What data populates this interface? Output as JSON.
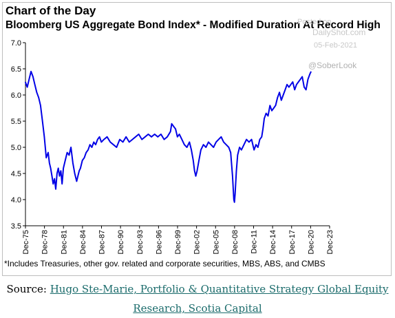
{
  "header": {
    "title": "Chart of the Day",
    "subtitle": "Bloomberg US Aggregate Bond Index* - Modified Duration At Record High"
  },
  "watermark": {
    "posted_on": "Posted on",
    "site": "DailyShot.com",
    "date": "05-Feb-2021",
    "handle": "@SoberLook"
  },
  "footnote": "*Includes Treasuries, other gov. related and corporate securities, MBS, ABS, and CMBS",
  "source": {
    "prefix": "Source: ",
    "link_line1": "Hugo Ste-Marie, Portfolio & Quantitative Strategy Global Equity",
    "link_line2": "Research, Scotia Capital"
  },
  "colors": {
    "line": "#0000e6",
    "axis": "#000000",
    "link": "#1a6b6b"
  },
  "chart_data": {
    "type": "line",
    "title": "Bloomberg US Aggregate Bond Index* - Modified Duration At Record High",
    "ylim": [
      3.5,
      7.0
    ],
    "yticks": [
      "3.5",
      "4.0",
      "4.5",
      "5.0",
      "5.5",
      "6.0",
      "6.5",
      "7.0"
    ],
    "xlim": [
      1975.92,
      2023.92
    ],
    "xticks": [
      "Dec-75",
      "Dec-78",
      "Dec-81",
      "Dec-84",
      "Dec-87",
      "Dec-90",
      "Dec-93",
      "Dec-96",
      "Dec-99",
      "Dec-02",
      "Dec-05",
      "Dec-08",
      "Dec-11",
      "Dec-14",
      "Dec-17",
      "Dec-20",
      "Dec-23"
    ],
    "grid": false,
    "legend": "none",
    "series": [
      {
        "x": [
          1975.9,
          1976.2,
          1976.5,
          1976.8,
          1977.1,
          1977.4,
          1977.7,
          1978.0,
          1978.3,
          1978.6,
          1978.9,
          1979.2,
          1979.5,
          1979.7,
          1979.9,
          1980.1,
          1980.3,
          1980.5,
          1980.7,
          1980.9,
          1981.1,
          1981.3,
          1981.5,
          1981.7,
          1981.9,
          1982.2,
          1982.5,
          1982.8,
          1983.1,
          1983.4,
          1983.7,
          1984.0,
          1984.2,
          1984.4,
          1984.6,
          1984.9,
          1985.2,
          1985.5,
          1985.8,
          1986.1,
          1986.4,
          1986.7,
          1987.0,
          1987.3,
          1987.6,
          1987.9,
          1988.3,
          1988.8,
          1989.3,
          1989.8,
          1990.3,
          1990.8,
          1991.3,
          1991.8,
          1992.3,
          1992.8,
          1993.3,
          1993.8,
          1994.3,
          1994.8,
          1995.3,
          1995.8,
          1996.3,
          1996.8,
          1997.3,
          1997.8,
          1998.3,
          1998.8,
          1999.0,
          1999.3,
          1999.6,
          1999.9,
          2000.2,
          2000.6,
          2001.0,
          2001.4,
          2001.8,
          2002.1,
          2002.4,
          2002.6,
          2002.8,
          2003.0,
          2003.3,
          2003.6,
          2004.0,
          2004.4,
          2004.8,
          2005.2,
          2005.6,
          2006.0,
          2006.4,
          2006.8,
          2007.2,
          2007.6,
          2008.0,
          2008.3,
          2008.6,
          2008.8,
          2008.9,
          2009.0,
          2009.2,
          2009.4,
          2009.7,
          2010.0,
          2010.4,
          2010.8,
          2011.2,
          2011.6,
          2012.0,
          2012.3,
          2012.6,
          2012.9,
          2013.2,
          2013.4,
          2013.6,
          2013.9,
          2014.2,
          2014.5,
          2014.8,
          2015.1,
          2015.4,
          2015.7,
          2016.0,
          2016.3,
          2016.6,
          2016.9,
          2017.2,
          2017.5,
          2017.8,
          2018.1,
          2018.4,
          2018.7,
          2019.0,
          2019.3,
          2019.6,
          2019.9,
          2020.2,
          2020.5,
          2020.8,
          2021.0
        ],
        "y": [
          6.25,
          6.15,
          6.3,
          6.45,
          6.35,
          6.2,
          6.05,
          5.95,
          5.8,
          5.5,
          5.2,
          4.8,
          4.9,
          4.7,
          4.6,
          4.45,
          4.3,
          4.4,
          4.2,
          4.5,
          4.6,
          4.45,
          4.55,
          4.3,
          4.6,
          4.75,
          4.9,
          4.85,
          5.0,
          4.7,
          4.5,
          4.35,
          4.45,
          4.55,
          4.6,
          4.75,
          4.8,
          4.9,
          4.95,
          5.05,
          5.0,
          5.1,
          5.05,
          5.15,
          5.2,
          5.1,
          5.15,
          5.2,
          5.1,
          5.05,
          5.0,
          5.15,
          5.1,
          5.2,
          5.1,
          5.15,
          5.2,
          5.25,
          5.15,
          5.2,
          5.25,
          5.2,
          5.25,
          5.2,
          5.25,
          5.15,
          5.2,
          5.3,
          5.45,
          5.4,
          5.35,
          5.2,
          5.25,
          5.15,
          5.05,
          5.0,
          5.1,
          4.95,
          4.75,
          4.55,
          4.45,
          4.55,
          4.75,
          4.95,
          5.05,
          5.0,
          5.1,
          5.05,
          5.0,
          5.1,
          5.15,
          5.2,
          5.1,
          5.05,
          5.0,
          4.9,
          4.45,
          4.0,
          3.95,
          4.1,
          4.55,
          4.85,
          5.0,
          4.95,
          5.05,
          5.15,
          5.1,
          5.15,
          4.95,
          5.05,
          5.0,
          5.15,
          5.2,
          5.35,
          5.55,
          5.65,
          5.6,
          5.8,
          5.7,
          5.75,
          5.8,
          5.95,
          6.05,
          5.9,
          6.0,
          6.1,
          6.2,
          6.15,
          6.2,
          6.25,
          6.1,
          6.2,
          6.25,
          6.3,
          6.35,
          6.15,
          6.1,
          6.3,
          6.4,
          6.45
        ]
      }
    ]
  }
}
